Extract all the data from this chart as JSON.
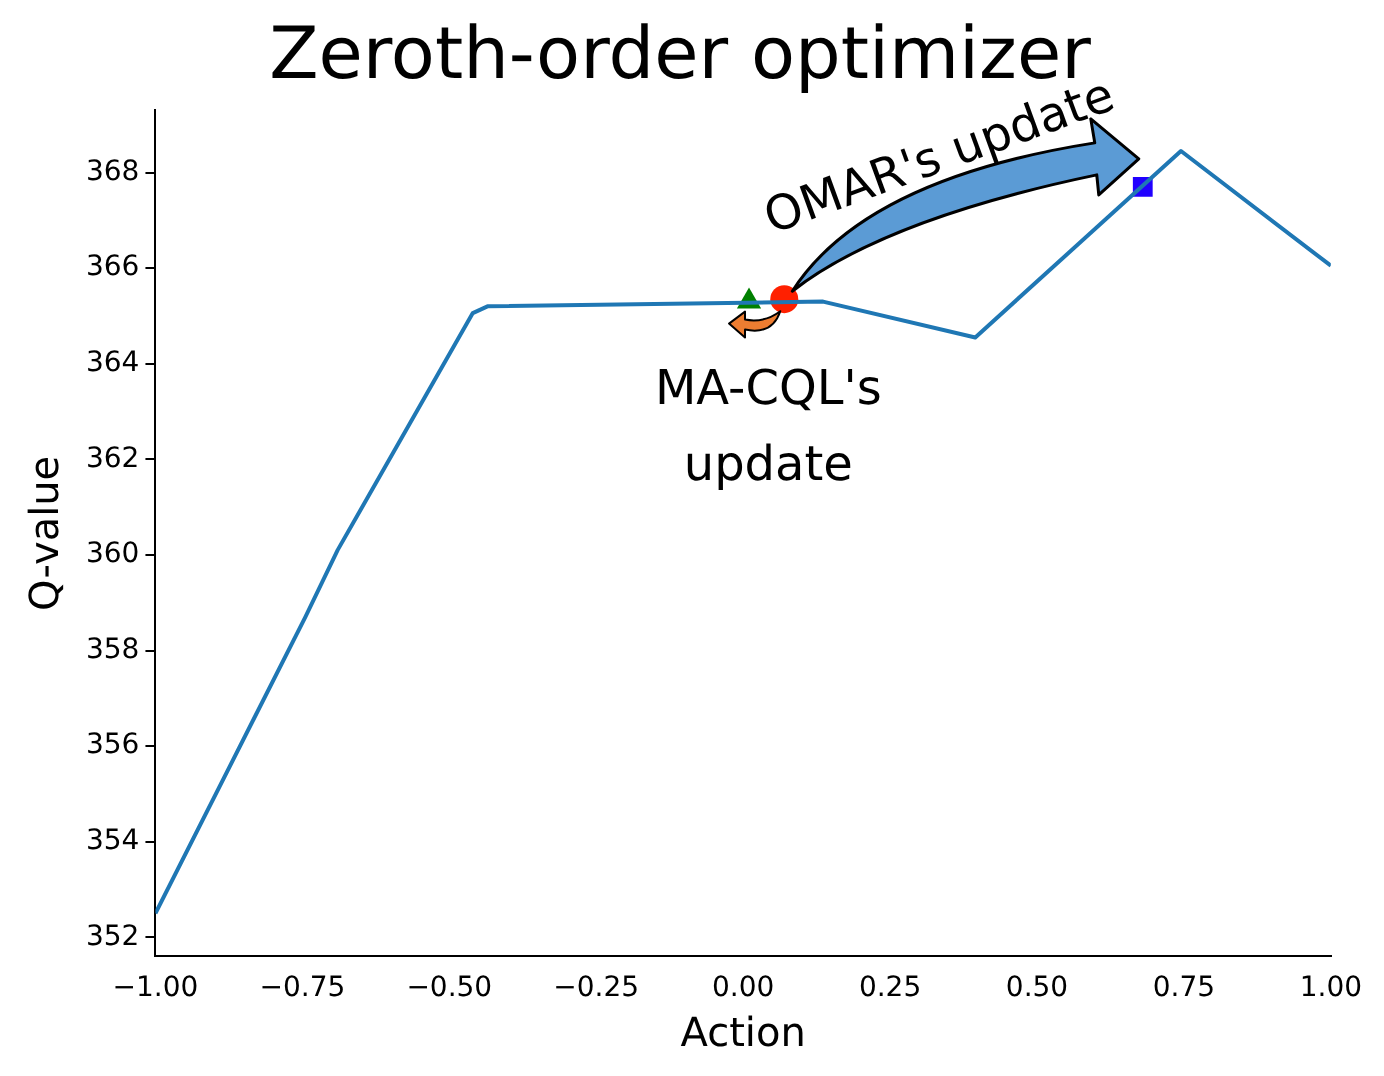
{
  "chart_data": {
    "type": "line",
    "title": "Zeroth-order optimizer",
    "xlabel": "Action",
    "ylabel": "Q-value",
    "annotations": [
      "OMAR's update",
      "MA-CQL's update"
    ],
    "xlim": [
      -1,
      1
    ],
    "ylim": [
      351.6,
      369.3
    ],
    "xticks": [
      {
        "value": -1,
        "label": "−1.00"
      },
      {
        "value": -0.75,
        "label": "−0.75"
      },
      {
        "value": -0.5,
        "label": "−0.50"
      },
      {
        "value": -0.25,
        "label": "−0.25"
      },
      {
        "value": 0,
        "label": "0.00"
      },
      {
        "value": 0.25,
        "label": "0.25"
      },
      {
        "value": 0.5,
        "label": "0.50"
      },
      {
        "value": 0.75,
        "label": "0.75"
      },
      {
        "value": 1,
        "label": "1.00"
      }
    ],
    "yticks": [
      352,
      354,
      356,
      358,
      360,
      362,
      364,
      366,
      368
    ],
    "grid": false,
    "legend": false,
    "series": [
      {
        "color": "#1f77b4",
        "marker": "none",
        "x": [
          -1,
          -0.745,
          -0.69,
          -0.46,
          -0.435,
          0.136,
          0.395,
          0.745,
          1
        ],
        "values": [
          352.5,
          358.7,
          360.1,
          365.06,
          365.2,
          365.3,
          364.55,
          368.45,
          366.05
        ]
      },
      {
        "type": "scatter",
        "color": "#008000",
        "marker": "triangle",
        "x": [
          0.01
        ],
        "values": [
          365.3
        ]
      },
      {
        "type": "scatter",
        "color": "#ff2000",
        "marker": "circle",
        "x": [
          0.07
        ],
        "values": [
          365.35
        ]
      },
      {
        "type": "scatter",
        "color": "#2000ff",
        "marker": "square",
        "x": [
          0.68
        ],
        "values": [
          367.7
        ]
      }
    ]
  }
}
